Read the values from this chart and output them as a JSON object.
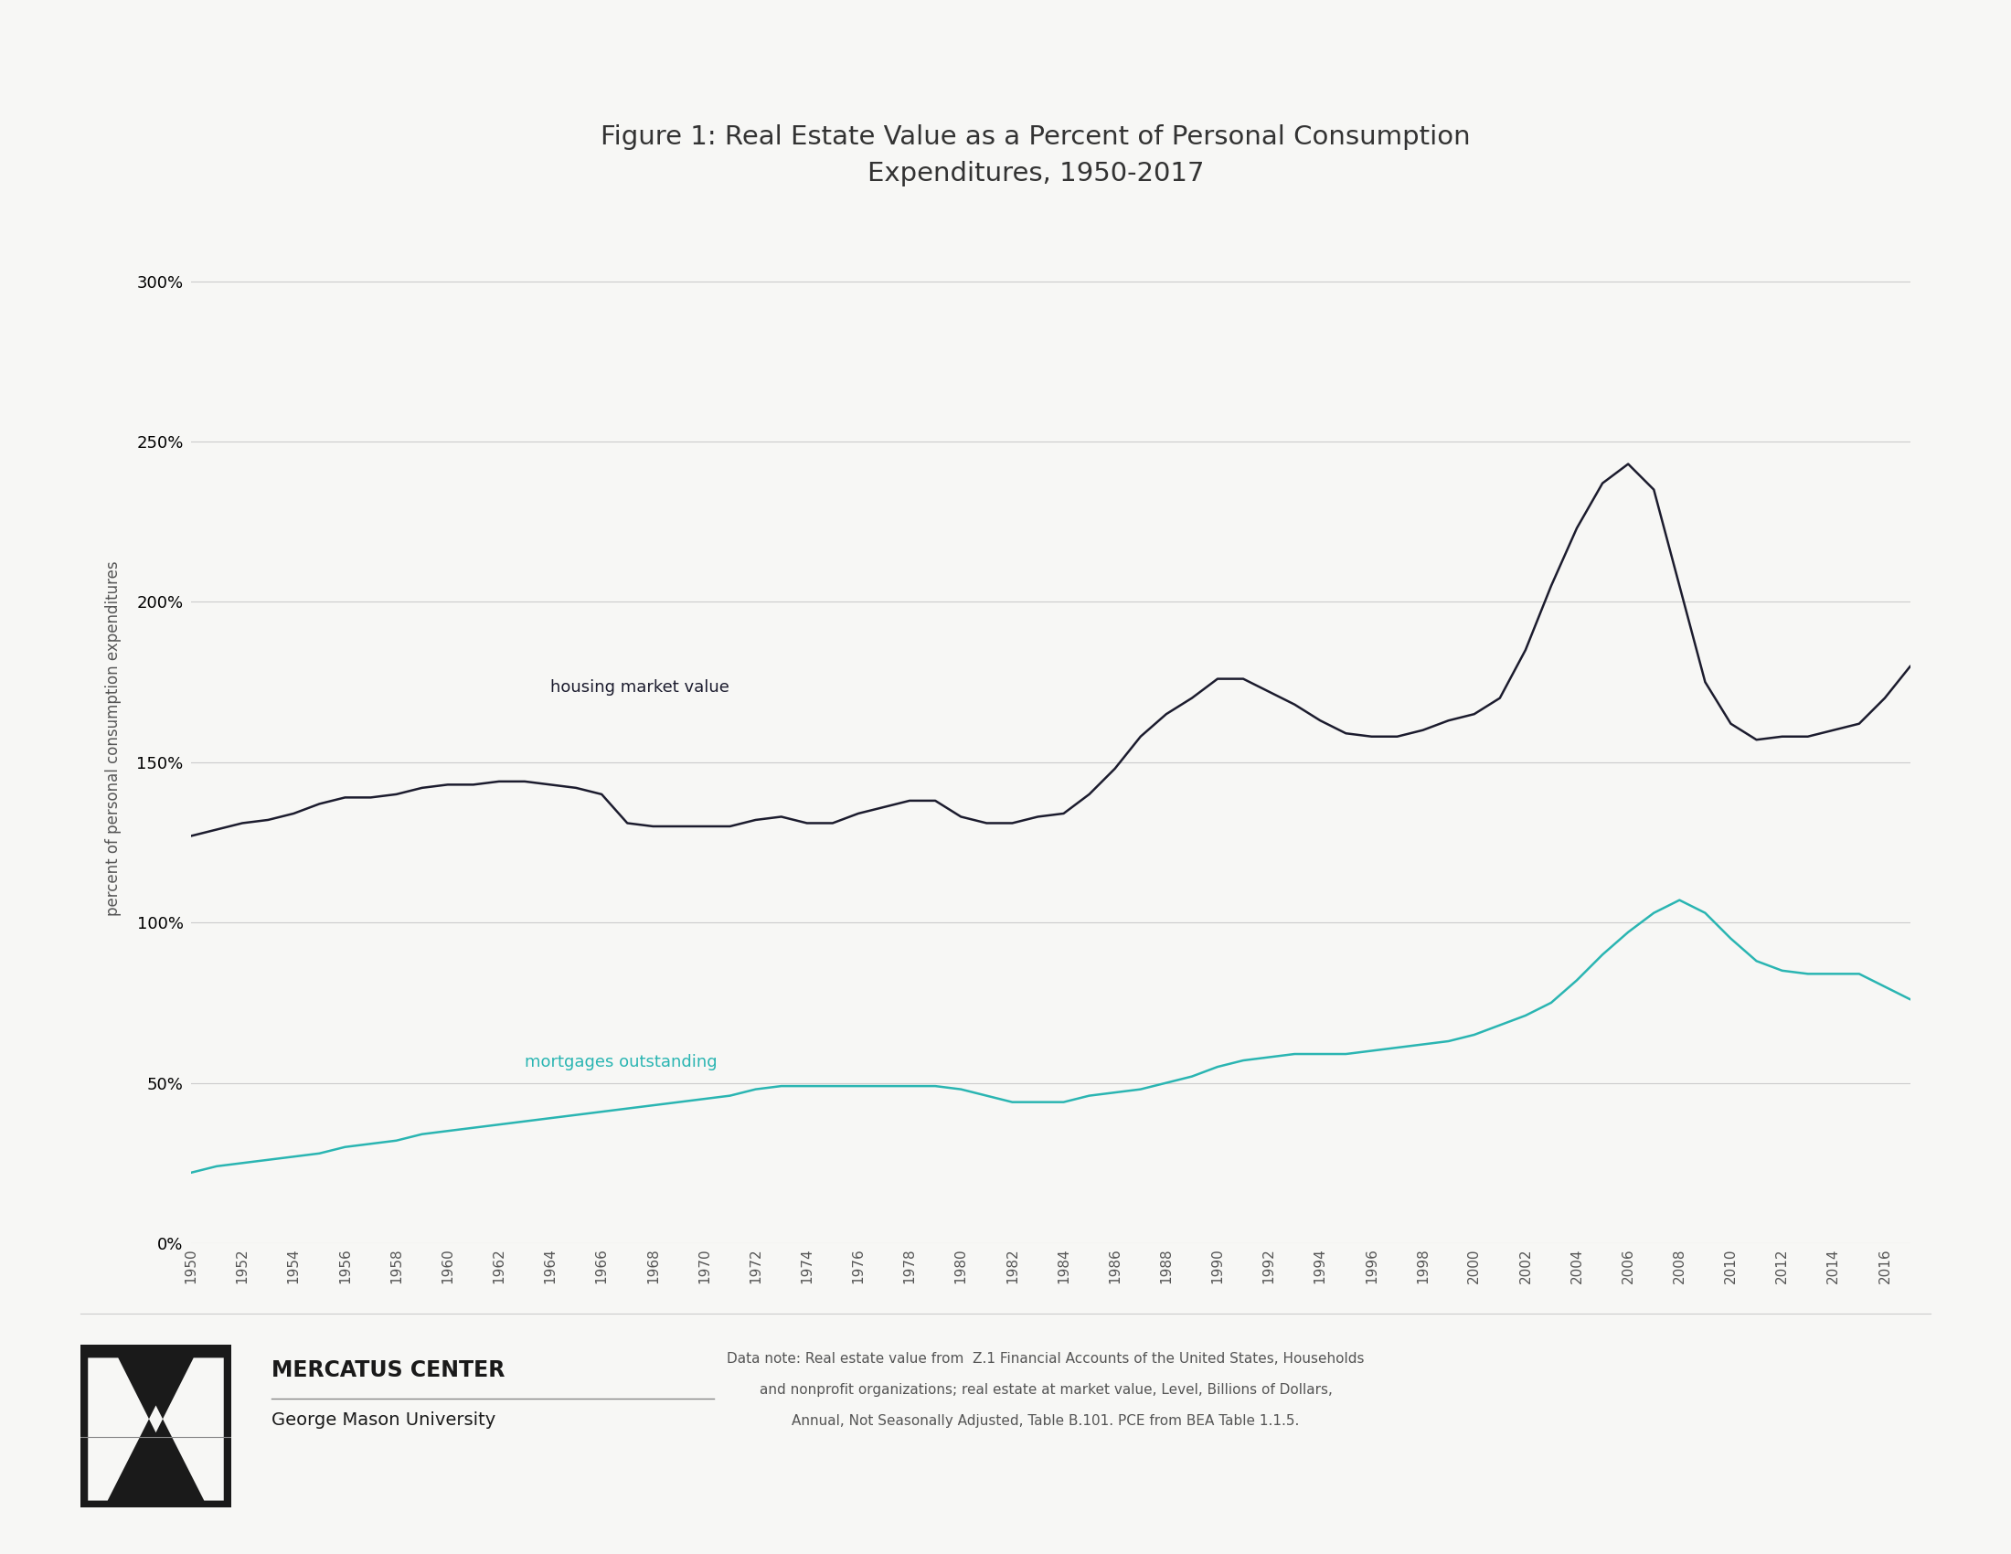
{
  "title_line1": "Figure 1: Real Estate Value as a Percent of Personal Consumption",
  "title_line2": "Expenditures, 1950-2017",
  "ylabel": "percent of personal consumption expenditures",
  "background_color": "#f7f7f5",
  "plot_bg_color": "#f7f7f5",
  "housing_color": "#1c1c2e",
  "mortgage_color": "#2ab5b2",
  "housing_label": "housing market value",
  "mortgage_label": "mortgages outstanding",
  "years": [
    1950,
    1951,
    1952,
    1953,
    1954,
    1955,
    1956,
    1957,
    1958,
    1959,
    1960,
    1961,
    1962,
    1963,
    1964,
    1965,
    1966,
    1967,
    1968,
    1969,
    1970,
    1971,
    1972,
    1973,
    1974,
    1975,
    1976,
    1977,
    1978,
    1979,
    1980,
    1981,
    1982,
    1983,
    1984,
    1985,
    1986,
    1987,
    1988,
    1989,
    1990,
    1991,
    1992,
    1993,
    1994,
    1995,
    1996,
    1997,
    1998,
    1999,
    2000,
    2001,
    2002,
    2003,
    2004,
    2005,
    2006,
    2007,
    2008,
    2009,
    2010,
    2011,
    2012,
    2013,
    2014,
    2015,
    2016,
    2017
  ],
  "housing_values": [
    127,
    129,
    131,
    132,
    134,
    137,
    139,
    139,
    140,
    142,
    143,
    143,
    144,
    144,
    143,
    142,
    140,
    131,
    130,
    130,
    130,
    130,
    132,
    133,
    131,
    131,
    134,
    136,
    138,
    138,
    133,
    131,
    131,
    133,
    134,
    140,
    148,
    158,
    165,
    170,
    176,
    176,
    172,
    168,
    163,
    159,
    158,
    158,
    160,
    163,
    165,
    170,
    185,
    205,
    223,
    237,
    243,
    235,
    205,
    175,
    162,
    157,
    158,
    158,
    160,
    162,
    170,
    180
  ],
  "mortgage_values": [
    22,
    24,
    25,
    26,
    27,
    28,
    30,
    31,
    32,
    34,
    35,
    36,
    37,
    38,
    39,
    40,
    41,
    42,
    43,
    44,
    45,
    46,
    48,
    49,
    49,
    49,
    49,
    49,
    49,
    49,
    48,
    46,
    44,
    44,
    44,
    46,
    47,
    48,
    50,
    52,
    55,
    57,
    58,
    59,
    59,
    59,
    60,
    61,
    62,
    63,
    65,
    68,
    71,
    75,
    82,
    90,
    97,
    103,
    107,
    103,
    95,
    88,
    85,
    84,
    84,
    84,
    80,
    76
  ],
  "note_line1": "Data note: Real estate value from  Z.1 Financial Accounts of the United States, Households",
  "note_line2": "and nonprofit organizations; real estate at market value, Level, Billions of Dollars,",
  "note_line3": "Annual, Not Seasonally Adjusted, Table B.101. PCE from BEA Table 1.1.5.",
  "yticks": [
    0,
    50,
    100,
    150,
    200,
    250,
    300
  ],
  "ylim": [
    0,
    315
  ],
  "xlim_start": 1950,
  "xlim_end": 2017
}
